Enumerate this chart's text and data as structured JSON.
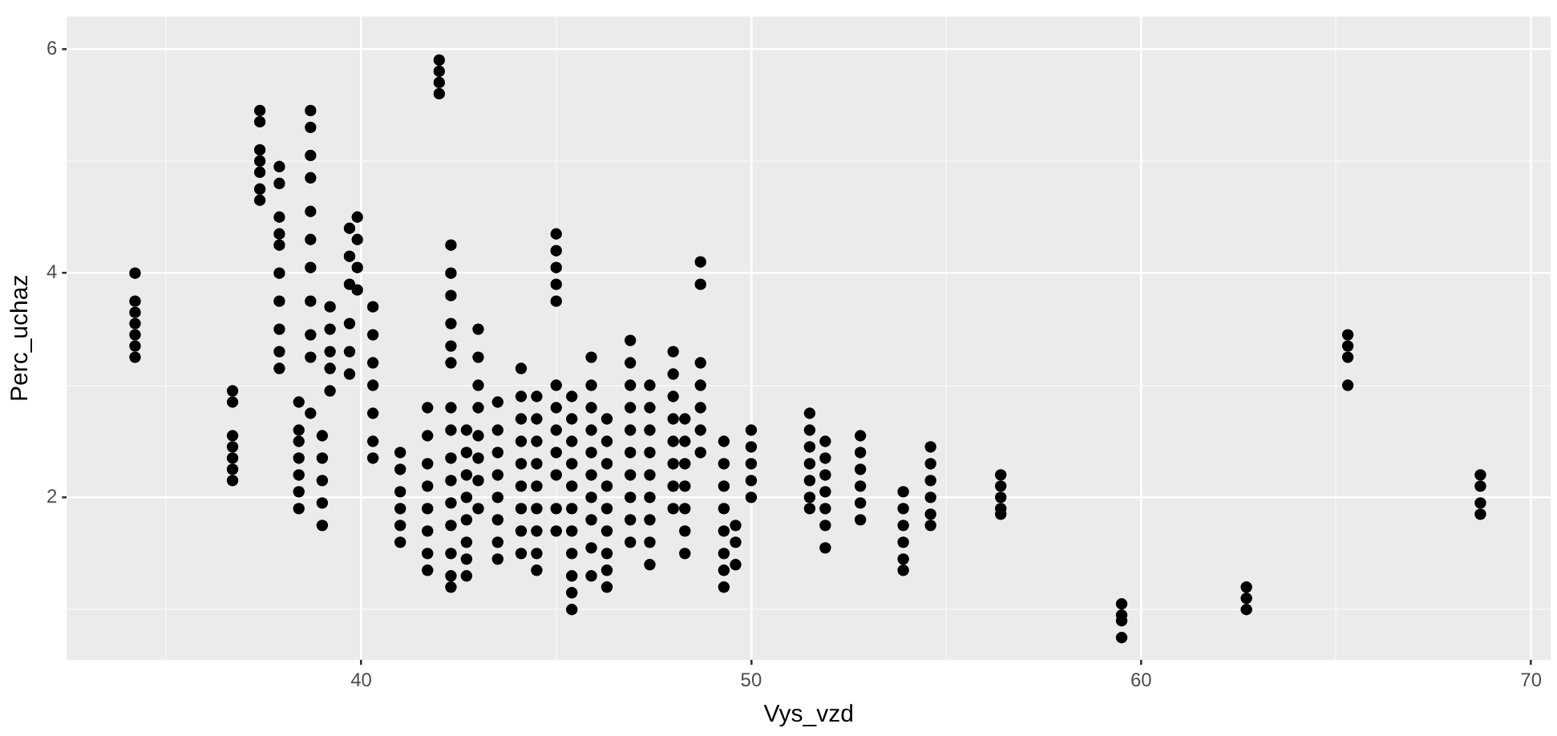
{
  "chart_data": {
    "type": "scatter",
    "xlabel": "Vys_vzd",
    "ylabel": "Perc_uchaz",
    "color": "#000000",
    "marker": "circle",
    "grid": true,
    "xlim": [
      32.45,
      70.5
    ],
    "ylim": [
      0.55,
      6.29
    ],
    "xticks": [
      {
        "value": 35,
        "label": null
      },
      40,
      {
        "value": 45,
        "label": null
      },
      50,
      {
        "value": 55,
        "label": null
      },
      60,
      {
        "value": 65,
        "label": null
      },
      70
    ],
    "yticks": [
      {
        "value": 1,
        "label": null
      },
      2,
      {
        "value": 3,
        "label": null
      },
      4,
      {
        "value": 5,
        "label": null
      },
      6
    ],
    "x": [
      34.2,
      34.2,
      34.2,
      34.2,
      34.2,
      34.2,
      34.2,
      36.7,
      36.7,
      36.7,
      36.7,
      36.7,
      36.7,
      36.7,
      37.4,
      37.4,
      37.4,
      37.4,
      37.4,
      37.4,
      37.4,
      37.9,
      37.9,
      37.9,
      37.9,
      37.9,
      37.9,
      37.9,
      37.9,
      37.9,
      37.9,
      38.4,
      38.4,
      38.4,
      38.4,
      38.4,
      38.4,
      38.4,
      38.7,
      38.7,
      38.7,
      38.7,
      38.7,
      38.7,
      38.7,
      38.7,
      38.7,
      38.7,
      38.7,
      39.0,
      39.0,
      39.0,
      39.0,
      39.0,
      39.2,
      39.2,
      39.2,
      39.2,
      39.2,
      39.7,
      39.7,
      39.7,
      39.7,
      39.7,
      39.7,
      39.9,
      39.9,
      39.9,
      39.9,
      40.3,
      40.3,
      40.3,
      40.3,
      40.3,
      40.3,
      40.3,
      41.0,
      41.0,
      41.0,
      41.0,
      41.0,
      41.0,
      41.7,
      41.7,
      41.7,
      41.7,
      41.7,
      41.7,
      41.7,
      41.7,
      42.0,
      42.0,
      42.0,
      42.0,
      42.3,
      42.3,
      42.3,
      42.3,
      42.3,
      42.3,
      42.3,
      42.3,
      42.3,
      42.3,
      42.3,
      42.3,
      42.3,
      42.3,
      42.3,
      42.7,
      42.7,
      42.7,
      42.7,
      42.7,
      42.7,
      42.7,
      42.7,
      43.0,
      43.0,
      43.0,
      43.0,
      43.0,
      43.0,
      43.0,
      43.0,
      43.5,
      43.5,
      43.5,
      43.5,
      43.5,
      43.5,
      43.5,
      43.5,
      44.1,
      44.1,
      44.1,
      44.1,
      44.1,
      44.1,
      44.1,
      44.1,
      44.1,
      44.5,
      44.5,
      44.5,
      44.5,
      44.5,
      44.5,
      44.5,
      44.5,
      44.5,
      45.0,
      45.0,
      45.0,
      45.0,
      45.0,
      45.0,
      45.0,
      45.0,
      45.0,
      45.0,
      45.0,
      45.0,
      45.4,
      45.4,
      45.4,
      45.4,
      45.4,
      45.4,
      45.4,
      45.4,
      45.4,
      45.4,
      45.4,
      45.9,
      45.9,
      45.9,
      45.9,
      45.9,
      45.9,
      45.9,
      45.9,
      45.9,
      45.9,
      46.3,
      46.3,
      46.3,
      46.3,
      46.3,
      46.3,
      46.3,
      46.3,
      46.3,
      46.9,
      46.9,
      46.9,
      46.9,
      46.9,
      46.9,
      46.9,
      46.9,
      46.9,
      46.9,
      47.4,
      47.4,
      47.4,
      47.4,
      47.4,
      47.4,
      47.4,
      47.4,
      47.4,
      48.0,
      48.0,
      48.0,
      48.0,
      48.0,
      48.0,
      48.0,
      48.0,
      48.3,
      48.3,
      48.3,
      48.3,
      48.3,
      48.3,
      48.3,
      48.7,
      48.7,
      48.7,
      48.7,
      48.7,
      48.7,
      48.7,
      49.3,
      49.3,
      49.3,
      49.3,
      49.3,
      49.3,
      49.3,
      49.3,
      49.6,
      49.6,
      49.6,
      50.0,
      50.0,
      50.0,
      50.0,
      50.0,
      51.5,
      51.5,
      51.5,
      51.5,
      51.5,
      51.5,
      51.5,
      51.9,
      51.9,
      51.9,
      51.9,
      51.9,
      51.9,
      51.9,
      52.8,
      52.8,
      52.8,
      52.8,
      52.8,
      52.8,
      53.9,
      53.9,
      53.9,
      53.9,
      53.9,
      53.9,
      54.6,
      54.6,
      54.6,
      54.6,
      54.6,
      54.6,
      56.4,
      56.4,
      56.4,
      56.4,
      56.4,
      59.5,
      59.5,
      59.5,
      59.5,
      62.7,
      62.7,
      62.7,
      65.3,
      65.3,
      65.3,
      65.3,
      68.7,
      68.7,
      68.7,
      68.7
    ],
    "values": [
      4.0,
      3.75,
      3.65,
      3.55,
      3.45,
      3.35,
      3.25,
      2.95,
      2.85,
      2.55,
      2.45,
      2.35,
      2.25,
      2.15,
      5.45,
      5.35,
      5.1,
      5.0,
      4.9,
      4.75,
      4.65,
      4.95,
      4.8,
      4.5,
      4.35,
      4.25,
      4.0,
      3.75,
      3.5,
      3.3,
      3.15,
      2.85,
      2.6,
      2.5,
      2.35,
      2.2,
      2.05,
      1.9,
      5.45,
      5.3,
      5.05,
      4.85,
      4.55,
      4.3,
      4.05,
      3.75,
      3.45,
      3.25,
      2.75,
      2.55,
      2.35,
      2.15,
      1.95,
      1.75,
      3.7,
      3.5,
      3.3,
      3.15,
      2.95,
      4.4,
      4.15,
      3.9,
      3.55,
      3.3,
      3.1,
      4.5,
      4.3,
      4.05,
      3.85,
      3.7,
      3.45,
      3.2,
      3.0,
      2.75,
      2.5,
      2.35,
      2.4,
      2.25,
      2.05,
      1.9,
      1.75,
      1.6,
      2.8,
      2.55,
      2.3,
      2.1,
      1.9,
      1.7,
      1.5,
      1.35,
      5.9,
      5.8,
      5.7,
      5.6,
      4.25,
      4.0,
      3.8,
      3.55,
      3.35,
      3.2,
      2.8,
      2.6,
      2.35,
      2.15,
      1.95,
      1.75,
      1.5,
      1.3,
      1.2,
      2.6,
      2.4,
      2.2,
      2.0,
      1.8,
      1.6,
      1.45,
      1.3,
      3.5,
      3.25,
      3.0,
      2.8,
      2.55,
      2.35,
      2.15,
      1.9,
      2.85,
      2.6,
      2.4,
      2.2,
      2.0,
      1.8,
      1.6,
      1.45,
      3.15,
      2.9,
      2.7,
      2.5,
      2.3,
      2.1,
      1.9,
      1.7,
      1.5,
      2.9,
      2.7,
      2.5,
      2.3,
      2.1,
      1.9,
      1.7,
      1.5,
      1.35,
      4.35,
      4.2,
      4.05,
      3.9,
      3.75,
      3.0,
      2.8,
      2.6,
      2.4,
      2.2,
      1.9,
      1.7,
      2.9,
      2.7,
      2.5,
      2.3,
      2.1,
      1.9,
      1.7,
      1.5,
      1.3,
      1.15,
      1.0,
      3.25,
      3.0,
      2.8,
      2.6,
      2.4,
      2.2,
      2.0,
      1.8,
      1.55,
      1.3,
      2.7,
      2.5,
      2.3,
      2.1,
      1.9,
      1.7,
      1.5,
      1.35,
      1.2,
      3.4,
      3.2,
      3.0,
      2.8,
      2.6,
      2.4,
      2.2,
      2.0,
      1.8,
      1.6,
      3.0,
      2.8,
      2.6,
      2.4,
      2.2,
      2.0,
      1.8,
      1.6,
      1.4,
      3.3,
      3.1,
      2.9,
      2.7,
      2.5,
      2.3,
      2.1,
      1.9,
      2.7,
      2.5,
      2.3,
      2.1,
      1.9,
      1.7,
      1.5,
      4.1,
      3.9,
      3.2,
      3.0,
      2.8,
      2.6,
      2.4,
      2.5,
      2.3,
      2.1,
      1.9,
      1.7,
      1.5,
      1.35,
      1.2,
      1.75,
      1.6,
      1.4,
      2.6,
      2.45,
      2.3,
      2.15,
      2.0,
      2.75,
      2.6,
      2.45,
      2.3,
      2.15,
      2.0,
      1.9,
      2.5,
      2.35,
      2.2,
      2.05,
      1.9,
      1.75,
      1.55,
      2.55,
      2.4,
      2.25,
      2.1,
      1.95,
      1.8,
      2.05,
      1.9,
      1.75,
      1.6,
      1.45,
      1.35,
      2.45,
      2.3,
      2.15,
      2.0,
      1.85,
      1.75,
      2.2,
      2.1,
      2.0,
      1.9,
      1.85,
      1.05,
      0.95,
      0.9,
      0.75,
      1.2,
      1.1,
      1.0,
      3.45,
      3.35,
      3.25,
      3.0,
      2.2,
      2.1,
      1.95,
      1.85
    ]
  }
}
